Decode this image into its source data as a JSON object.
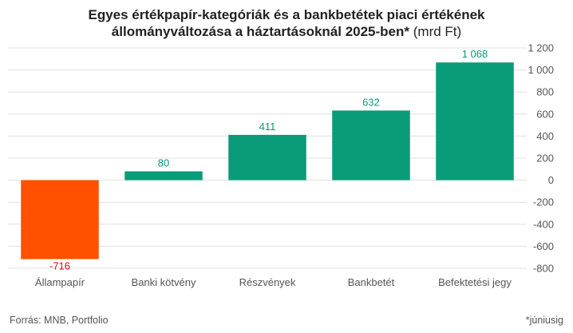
{
  "chart_data": {
    "type": "bar",
    "title_lines": [
      "Egyes értékpapír-kategóriák és a bankbetétek piaci értékének",
      "állományváltozása a háztartásoknál 2025-ben*"
    ],
    "title_unit": " (mrd Ft)",
    "categories": [
      "Állampapír",
      "Banki kötvény",
      "Részvények",
      "Bankbetét",
      "Befektetési jegy"
    ],
    "values": [
      -716,
      80,
      411,
      632,
      1068
    ],
    "data_labels": [
      "-716",
      "80",
      "411",
      "632",
      "1 068"
    ],
    "ylim": [
      -800,
      1200
    ],
    "yticks": [
      1200,
      1000,
      800,
      600,
      400,
      200,
      0,
      -200,
      -400,
      -600,
      -800
    ],
    "ytick_labels": [
      "1 200",
      "1 000",
      "800",
      "600",
      "400",
      "200",
      "0",
      "-200",
      "-400",
      "-600",
      "-800"
    ],
    "y_axis_position": "right",
    "grid": true,
    "colors": {
      "positive": "#0a9b78",
      "negative": "#ff5100",
      "negative_label": "#e8001c",
      "grid": "#e0e0e0"
    }
  },
  "footer": {
    "source": "Forrás: MNB, Portfolio",
    "note": "*júniusig"
  }
}
